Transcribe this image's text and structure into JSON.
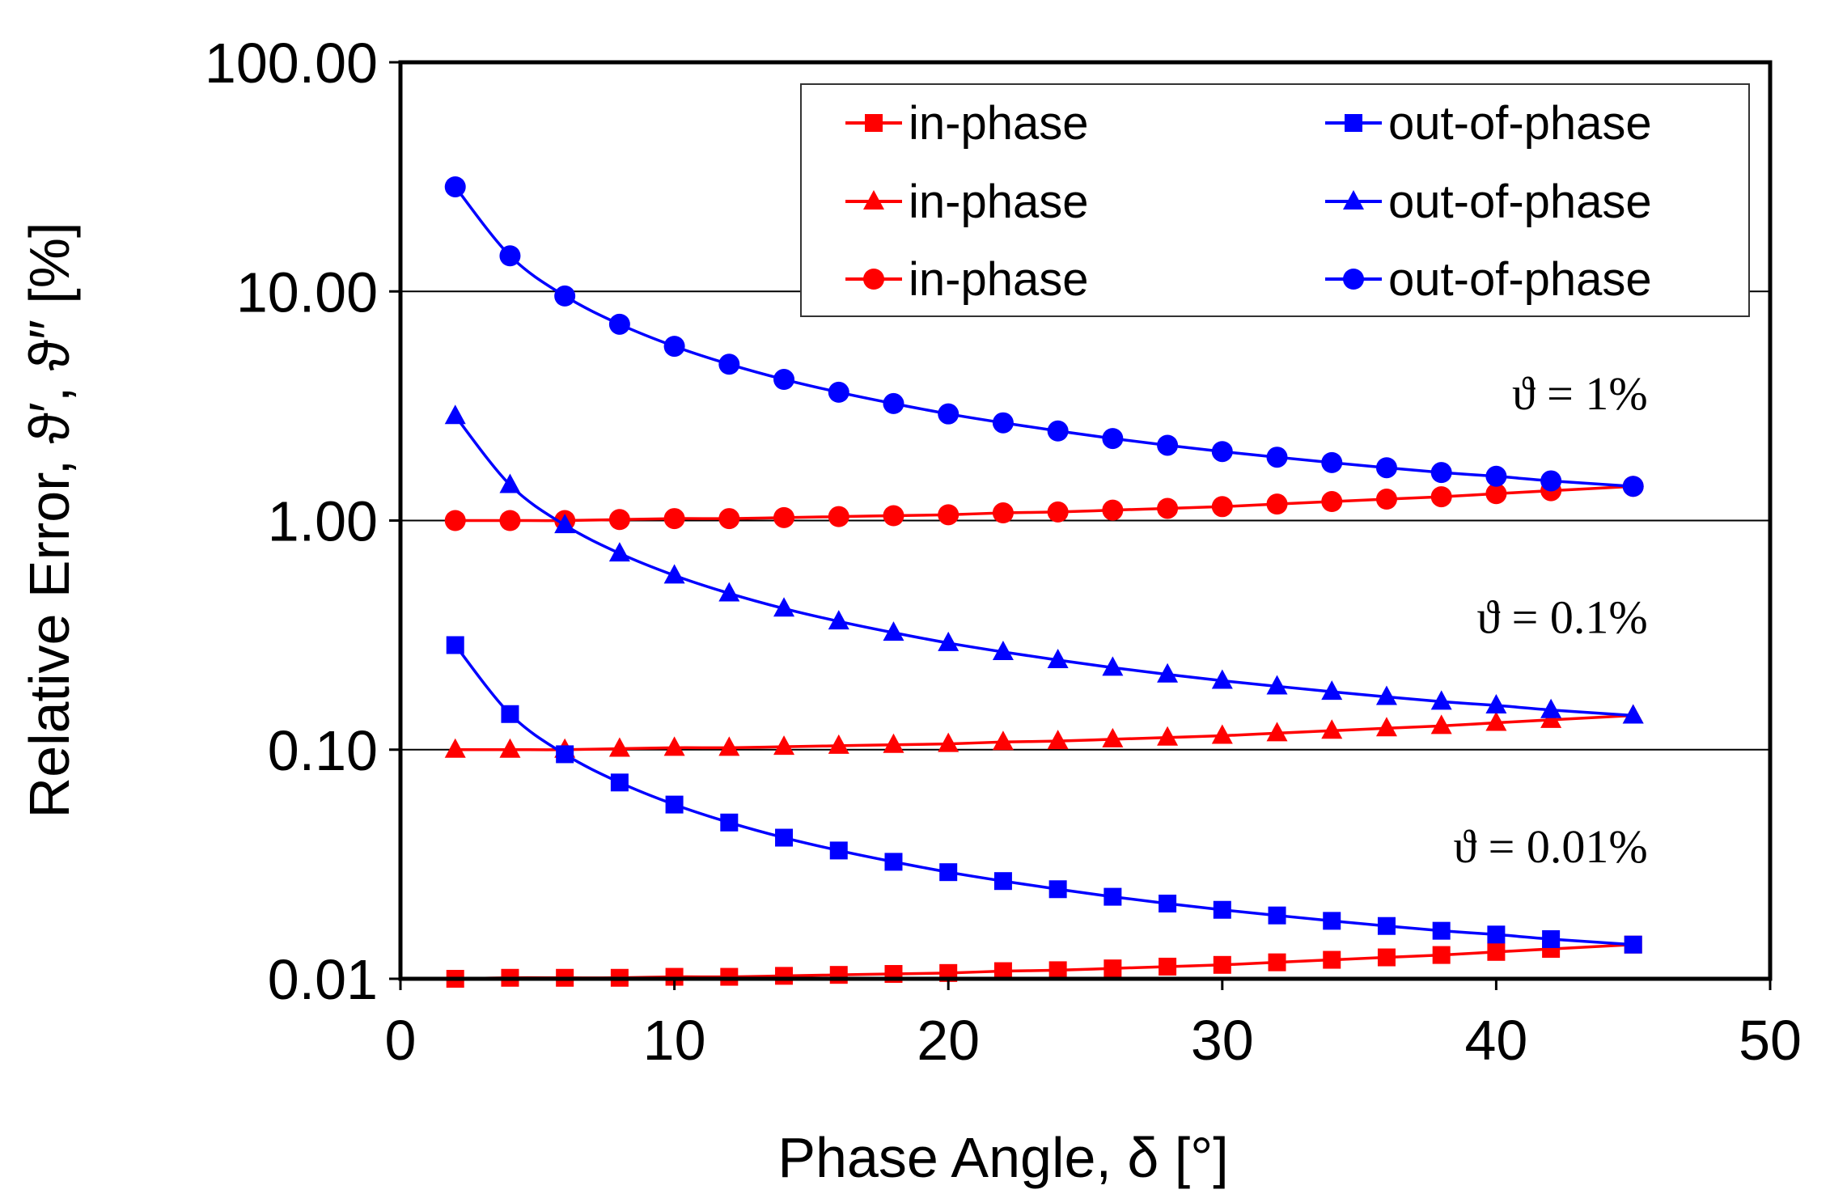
{
  "chart_data": {
    "type": "line",
    "title": "",
    "xlabel": "Phase Angle, δ   [°]",
    "ylabel": "Relative Error, ϑ′, ϑ″  [%]",
    "xlim": [
      0,
      50
    ],
    "ylim": [
      0.01,
      100
    ],
    "yscale": "log",
    "xticks": [
      "0",
      "10",
      "20",
      "30",
      "40",
      "50"
    ],
    "yticks": [
      "0.01",
      "0.10",
      "1.00",
      "10.00",
      "100.00"
    ],
    "grid": "horizontal",
    "legend_position": "top-right",
    "x": [
      2,
      4,
      6,
      8,
      10,
      12,
      14,
      16,
      18,
      20,
      22,
      24,
      26,
      28,
      30,
      32,
      34,
      36,
      38,
      40,
      42,
      45
    ],
    "series": [
      {
        "name": "in-phase",
        "color": "#ff0000",
        "marker": "square",
        "theta": "0.01%",
        "values": [
          0.01,
          0.0101,
          0.0101,
          0.0101,
          0.0102,
          0.0102,
          0.0103,
          0.0104,
          0.0105,
          0.0106,
          0.0108,
          0.0109,
          0.0111,
          0.0113,
          0.0115,
          0.0118,
          0.0121,
          0.0124,
          0.0127,
          0.0131,
          0.0135,
          0.0141
        ]
      },
      {
        "name": "in-phase",
        "color": "#ff0000",
        "marker": "triangle",
        "theta": "0.1%",
        "values": [
          0.1,
          0.1,
          0.1,
          0.101,
          0.102,
          0.102,
          0.103,
          0.104,
          0.105,
          0.106,
          0.108,
          0.109,
          0.111,
          0.113,
          0.115,
          0.118,
          0.121,
          0.124,
          0.127,
          0.131,
          0.135,
          0.141
        ]
      },
      {
        "name": "in-phase",
        "color": "#ff0000",
        "marker": "circle",
        "theta": "1%",
        "values": [
          1.0,
          1.0,
          1.0,
          1.01,
          1.02,
          1.02,
          1.03,
          1.04,
          1.05,
          1.06,
          1.08,
          1.09,
          1.11,
          1.13,
          1.15,
          1.18,
          1.21,
          1.24,
          1.27,
          1.31,
          1.35,
          1.41
        ]
      },
      {
        "name": "out-of-phase",
        "color": "#0000ff",
        "marker": "square",
        "theta": "0.01%",
        "values": [
          0.286,
          0.143,
          0.0955,
          0.0719,
          0.0576,
          0.0481,
          0.0413,
          0.0363,
          0.0324,
          0.0292,
          0.0267,
          0.0246,
          0.0228,
          0.0213,
          0.02,
          0.0189,
          0.0179,
          0.017,
          0.0162,
          0.0156,
          0.0149,
          0.0141
        ]
      },
      {
        "name": "out-of-phase",
        "color": "#0000ff",
        "marker": "triangle",
        "theta": "0.1%",
        "values": [
          2.86,
          1.43,
          0.955,
          0.719,
          0.576,
          0.481,
          0.413,
          0.363,
          0.324,
          0.292,
          0.267,
          0.246,
          0.228,
          0.213,
          0.2,
          0.189,
          0.179,
          0.17,
          0.162,
          0.156,
          0.149,
          0.141
        ]
      },
      {
        "name": "out-of-phase",
        "color": "#0000ff",
        "marker": "circle",
        "theta": "1%",
        "values": [
          28.6,
          14.3,
          9.55,
          7.19,
          5.76,
          4.81,
          4.13,
          3.63,
          3.24,
          2.92,
          2.67,
          2.46,
          2.28,
          2.13,
          2.0,
          1.89,
          1.79,
          1.7,
          1.62,
          1.56,
          1.49,
          1.41
        ]
      }
    ],
    "legend": [
      {
        "label": "in-phase",
        "color": "#ff0000",
        "marker": "square"
      },
      {
        "label": "out-of-phase",
        "color": "#0000ff",
        "marker": "square"
      },
      {
        "label": "in-phase",
        "color": "#ff0000",
        "marker": "triangle"
      },
      {
        "label": "out-of-phase",
        "color": "#0000ff",
        "marker": "triangle"
      },
      {
        "label": "in-phase",
        "color": "#ff0000",
        "marker": "circle"
      },
      {
        "label": "out-of-phase",
        "color": "#0000ff",
        "marker": "circle"
      }
    ],
    "annotations": [
      {
        "text": "ϑ = 1%",
        "x": 45,
        "y": 3.6
      },
      {
        "text": "ϑ = 0.1%",
        "x": 45,
        "y": 0.38
      },
      {
        "text": "ϑ = 0.01%",
        "x": 45,
        "y": 0.038
      }
    ]
  }
}
